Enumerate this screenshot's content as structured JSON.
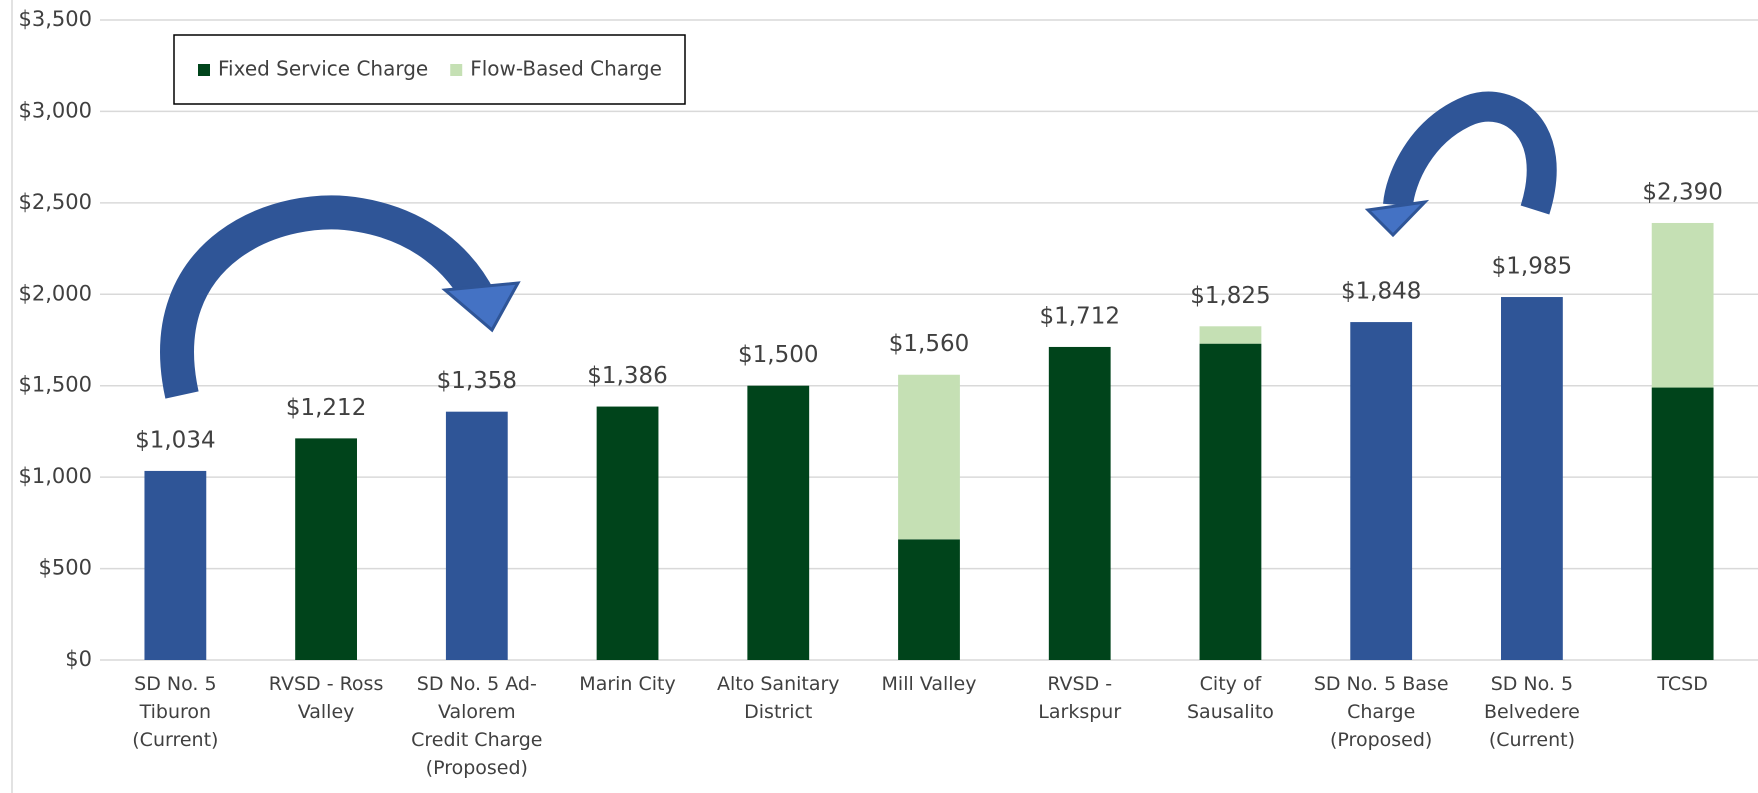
{
  "chart_data": {
    "type": "stacked_bar",
    "categories": [
      "SD No. 5\nTiburon\n(Current)",
      "RVSD - Ross\nValley",
      "SD No. 5 Ad-\nValorem\nCredit Charge\n(Proposed)",
      "Marin City",
      "Alto Sanitary\nDistrict",
      "Mill Valley",
      "RVSD -\nLarkspur",
      "City of\nSausalito",
      "SD No. 5 Base\nCharge\n(Proposed)",
      "SD No. 5\nBelvedere\n(Current)",
      "TCSD"
    ],
    "series": [
      {
        "name": "Fixed Service Charge",
        "color": "#00441b",
        "point_colors": [
          "#2f5597",
          "#00441b",
          "#2f5597",
          "#00441b",
          "#00441b",
          "#00441b",
          "#00441b",
          "#00441b",
          "#2f5597",
          "#2f5597",
          "#00441b"
        ],
        "values": [
          1034,
          1212,
          1358,
          1386,
          1500,
          660,
          1712,
          1730,
          1848,
          1985,
          1490
        ]
      },
      {
        "name": "Flow-Based Charge",
        "color": "#c5e0b4",
        "values": [
          0,
          0,
          0,
          0,
          0,
          900,
          0,
          95,
          0,
          0,
          900
        ]
      }
    ],
    "totals": [
      1034,
      1212,
      1358,
      1386,
      1500,
      1560,
      1712,
      1825,
      1848,
      1985,
      2390
    ],
    "total_labels": [
      "$1,034",
      "$1,212",
      "$1,358",
      "$1,386",
      "$1,500",
      "$1,560",
      "$1,712",
      "$1,825",
      "$1,848",
      "$1,985",
      "$2,390"
    ],
    "ylim": [
      0,
      3500
    ],
    "yticks": [
      {
        "value": 0,
        "label": "$0"
      },
      {
        "value": 500,
        "label": "$500"
      },
      {
        "value": 1000,
        "label": "$1,000"
      },
      {
        "value": 1500,
        "label": "$1,500"
      },
      {
        "value": 2000,
        "label": "$2,000"
      },
      {
        "value": 2500,
        "label": "$2,500"
      },
      {
        "value": 3000,
        "label": "$3,000"
      },
      {
        "value": 3500,
        "label": "$3,500"
      }
    ],
    "grid": true,
    "legend": "top-left"
  }
}
